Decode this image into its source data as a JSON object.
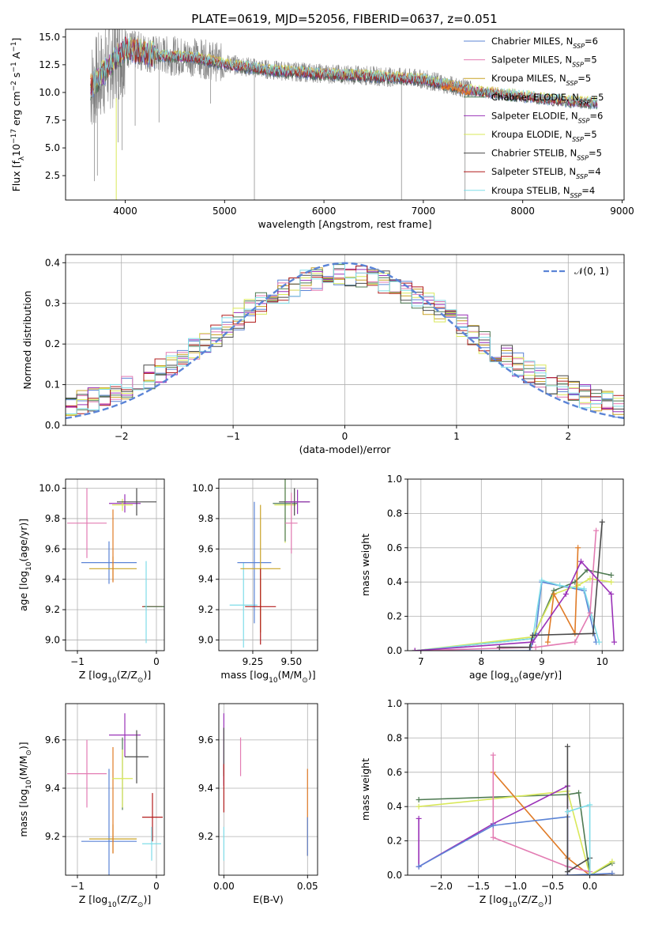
{
  "figure_title": "PLATE=0619, MJD=52056, FIBERID=0637, z=0.051",
  "colors": {
    "Chabrier MILES": "#5b84d6",
    "Salpeter MILES": "#e37cb3",
    "Kroupa MILES": "#c9a227",
    "Chabrier ELODIE": "#4e7a52",
    "Salpeter ELODIE": "#9a32b8",
    "Kroupa ELODIE": "#d9e85a",
    "Chabrier STELIB": "#4a4a4a",
    "Salpeter STELIB": "#b21c1c",
    "Kroupa STELIB": "#7fdde8",
    "data": "#808080",
    "highlight_orange": "#e07b27",
    "normal_curve": "#5b84d6"
  },
  "chart_data": [
    {
      "id": "spectrum",
      "type": "line",
      "xlabel": "wavelength [Angstrom, rest frame]",
      "ylabel_parts": [
        "Flux [f",
        "λ",
        "10",
        "−17",
        " erg cm",
        "−2",
        " s",
        "−1",
        " A",
        "−1",
        "]"
      ],
      "xlim": [
        3400,
        9020
      ],
      "ylim": [
        0.3,
        15.7
      ],
      "xticks": [
        4000,
        5000,
        6000,
        7000,
        8000,
        9000
      ],
      "yticks": [
        2.5,
        5.0,
        7.5,
        10.0,
        12.5,
        15.0
      ],
      "legend_position": "top-right",
      "legend": [
        {
          "name": "Chabrier MILES",
          "nssp": "6"
        },
        {
          "name": "Salpeter MILES",
          "nssp": "5"
        },
        {
          "name": "Kroupa MILES",
          "nssp": "5"
        },
        {
          "name": "Chabrier ELODIE",
          "nssp": "5"
        },
        {
          "name": "Salpeter ELODIE",
          "nssp": "6"
        },
        {
          "name": "Kroupa ELODIE",
          "nssp": "5"
        },
        {
          "name": "Chabrier STELIB",
          "nssp": "5"
        },
        {
          "name": "Salpeter STELIB",
          "nssp": "4"
        },
        {
          "name": "Kroupa STELIB",
          "nssp": "4"
        }
      ],
      "data_trend": [
        [
          3650,
          10.5
        ],
        [
          3800,
          12.0
        ],
        [
          4000,
          14.0
        ],
        [
          4300,
          13.4
        ],
        [
          4700,
          13.2
        ],
        [
          5000,
          12.6
        ],
        [
          5500,
          12.0
        ],
        [
          6000,
          11.7
        ],
        [
          6500,
          11.5
        ],
        [
          7000,
          11.2
        ],
        [
          7300,
          10.6
        ],
        [
          7500,
          10.2
        ],
        [
          8000,
          9.7
        ],
        [
          8500,
          9.2
        ],
        [
          8750,
          9.1
        ]
      ],
      "data_range": [
        3650,
        7480
      ],
      "model_range": [
        3650,
        8750
      ],
      "absorption_lines": [
        {
          "x": 3690,
          "y": 2.0
        },
        {
          "x": 3720,
          "y": 2.5
        },
        {
          "x": 3930,
          "y": 5.5
        },
        {
          "x": 3970,
          "y": 4.8
        },
        {
          "x": 4100,
          "y": 7.0
        },
        {
          "x": 4340,
          "y": 7.3
        },
        {
          "x": 4860,
          "y": 9.0
        },
        {
          "x": 5300,
          "y": 0.3
        },
        {
          "x": 6780,
          "y": 0.3
        },
        {
          "x": 7420,
          "y": 0.3
        }
      ],
      "model_drop": {
        "x": 3910,
        "y": 0.3
      }
    },
    {
      "id": "residual-histogram",
      "type": "histogram",
      "xlabel": "(data-model)/error",
      "ylabel": "Normed distribution",
      "xlim": [
        -2.5,
        2.5
      ],
      "ylim": [
        0,
        0.42
      ],
      "xticks": [
        -2,
        -1,
        0,
        1,
        2
      ],
      "yticks": [
        0.0,
        0.1,
        0.2,
        0.3,
        0.4
      ],
      "legend": [
        {
          "name": "𝒩(0, 1)",
          "style": "dashed"
        }
      ],
      "legend_position": "top-right",
      "bin_width": 0.1,
      "reference": "standard normal",
      "shape": {
        "center": 0.0,
        "peak": 0.37,
        "width": 1.1,
        "floor": 0.02
      }
    },
    {
      "id": "age-vs-Z",
      "type": "scatter-errorbar",
      "xlabel_parts": [
        "Z [log",
        "10",
        "(Z/Z",
        "⊙",
        ")]"
      ],
      "ylabel_parts": [
        "age  [log",
        "10",
        "(age/yr)]"
      ],
      "xlim": [
        -1.15,
        0.1
      ],
      "ylim": [
        8.93,
        10.06
      ],
      "xticks": [
        -1,
        0
      ],
      "yticks": [
        9.0,
        9.2,
        9.4,
        9.6,
        9.8,
        10.0
      ],
      "points": [
        {
          "s": "Salpeter MILES",
          "x": -0.88,
          "y": 9.77,
          "xe": 0.25,
          "ye": 0.23
        },
        {
          "s": "Chabrier MILES",
          "x": -0.6,
          "y": 9.51,
          "xe": 0.35,
          "ye": 0.14
        },
        {
          "s": "Kroupa MILES",
          "x": -0.55,
          "y": 9.47,
          "xe": 0.3,
          "ye": 0.08
        },
        {
          "s": "Highlight",
          "x": -0.55,
          "y": 9.62,
          "xe": 0.0,
          "ye": 0.24
        },
        {
          "s": "Salpeter ELODIE",
          "x": -0.4,
          "y": 9.9,
          "xe": 0.2,
          "ye": 0.06
        },
        {
          "s": "Kroupa ELODIE",
          "x": -0.43,
          "y": 9.89,
          "xe": 0.13,
          "ye": 0.04
        },
        {
          "s": "Chabrier STELIB",
          "x": -0.25,
          "y": 9.91,
          "xe": 0.25,
          "ye": 0.09
        },
        {
          "s": "Salpeter STELIB",
          "x": -0.05,
          "y": 9.22,
          "xe": 0.13,
          "ye": 0.0
        },
        {
          "s": "Chabrier ELODIE",
          "x": -0.03,
          "y": 9.22,
          "xe": 0.13,
          "ye": 0.0
        },
        {
          "s": "Kroupa STELIB",
          "x": -0.13,
          "y": 9.25,
          "xe": 0.0,
          "ye": 0.27
        }
      ]
    },
    {
      "id": "age-vs-mass",
      "type": "scatter-errorbar",
      "xlabel_parts": [
        "mass [log",
        "10",
        "(M/M",
        "⊙",
        ")]"
      ],
      "ylabel_parts": [],
      "xlim": [
        9.03,
        9.67
      ],
      "ylim": [
        8.93,
        10.06
      ],
      "xticks": [
        9.25,
        9.5
      ],
      "xticklabels": [
        "9.25",
        "9.50"
      ],
      "yticks": [
        9.0,
        9.2,
        9.4,
        9.6,
        9.8,
        10.0
      ],
      "points": [
        {
          "s": "Kroupa STELIB",
          "x": 9.19,
          "y": 9.23,
          "xe": 0.09,
          "ye": 0.28
        },
        {
          "s": "Chabrier MILES",
          "x": 9.26,
          "y": 9.51,
          "xe": 0.11,
          "ye": 0.4
        },
        {
          "s": "Kroupa MILES",
          "x": 9.3,
          "y": 9.47,
          "xe": 0.13,
          "ye": 0.42
        },
        {
          "s": "Salpeter STELIB",
          "x": 9.3,
          "y": 9.22,
          "xe": 0.1,
          "ye": 0.25
        },
        {
          "s": "Kroupa ELODIE",
          "x": 9.46,
          "y": 9.89,
          "xe": 0.07,
          "ye": 0.25
        },
        {
          "s": "Chabrier ELODIE",
          "x": 9.46,
          "y": 9.9,
          "xe": 0.08,
          "ye": 0.25
        },
        {
          "s": "Salpeter MILES",
          "x": 9.5,
          "y": 9.77,
          "xe": 0.04,
          "ye": 0.2
        },
        {
          "s": "Chabrier STELIB",
          "x": 9.52,
          "y": 9.91,
          "xe": 0.1,
          "ye": 0.09
        },
        {
          "s": "Salpeter ELODIE",
          "x": 9.54,
          "y": 9.91,
          "xe": 0.08,
          "ye": 0.08
        }
      ]
    },
    {
      "id": "massweight-vs-age",
      "type": "line",
      "xlabel_parts": [
        "age  [log",
        "10",
        "(age/yr)]"
      ],
      "ylabel": "mass weight",
      "xlim": [
        6.78,
        10.35
      ],
      "ylim": [
        0,
        1.0
      ],
      "xticks": [
        7,
        8,
        9,
        10
      ],
      "yticks": [
        0.0,
        0.2,
        0.4,
        0.6,
        0.8,
        1.0
      ],
      "series": [
        {
          "name": "Chabrier MILES",
          "pts": [
            [
              6.9,
              0.0
            ],
            [
              8.8,
              0.0
            ],
            [
              8.9,
              0.1
            ],
            [
              9.0,
              0.4
            ],
            [
              9.7,
              0.35
            ],
            [
              9.9,
              0.05
            ]
          ]
        },
        {
          "name": "Chabrier ELODIE",
          "pts": [
            [
              6.9,
              0.0
            ],
            [
              8.85,
              0.07
            ],
            [
              9.2,
              0.35
            ],
            [
              9.55,
              0.4
            ],
            [
              9.75,
              0.47
            ],
            [
              10.15,
              0.44
            ]
          ]
        },
        {
          "name": "Kroupa ELODIE",
          "pts": [
            [
              6.9,
              0.0
            ],
            [
              8.85,
              0.08
            ],
            [
              9.2,
              0.33
            ],
            [
              9.6,
              0.38
            ],
            [
              9.8,
              0.42
            ],
            [
              10.15,
              0.4
            ]
          ]
        },
        {
          "name": "Kroupa STELIB",
          "pts": [
            [
              6.9,
              0.0
            ],
            [
              8.85,
              0.07
            ],
            [
              9.0,
              0.41
            ],
            [
              9.3,
              0.38
            ],
            [
              9.7,
              0.36
            ],
            [
              9.95,
              0.05
            ]
          ]
        },
        {
          "name": "Salpeter MILES",
          "pts": [
            [
              6.9,
              0.0
            ],
            [
              8.9,
              0.02
            ],
            [
              9.55,
              0.05
            ],
            [
              9.8,
              0.22
            ],
            [
              9.9,
              0.7
            ]
          ]
        },
        {
          "name": "Highlight",
          "pts": [
            [
              9.1,
              0.05
            ],
            [
              9.2,
              0.33
            ],
            [
              9.55,
              0.1
            ],
            [
              9.6,
              0.6
            ]
          ]
        },
        {
          "name": "Chabrier STELIB",
          "pts": [
            [
              8.3,
              0.02
            ],
            [
              8.8,
              0.02
            ],
            [
              8.85,
              0.09
            ],
            [
              9.85,
              0.1
            ],
            [
              10.0,
              0.75
            ]
          ]
        },
        {
          "name": "Salpeter ELODIE",
          "pts": [
            [
              6.9,
              0.0
            ],
            [
              8.85,
              0.05
            ],
            [
              9.4,
              0.33
            ],
            [
              9.65,
              0.52
            ],
            [
              10.15,
              0.33
            ],
            [
              10.2,
              0.05
            ]
          ]
        }
      ]
    },
    {
      "id": "mass-vs-Z",
      "type": "scatter-errorbar",
      "xlabel_parts": [
        "Z [log",
        "10",
        "(Z/Z",
        "⊙",
        ")]"
      ],
      "ylabel_parts": [
        "mass [log",
        "10",
        "(M/M",
        "⊙",
        ")]"
      ],
      "xlim": [
        -1.15,
        0.1
      ],
      "ylim": [
        9.04,
        9.75
      ],
      "xticks": [
        -1,
        0
      ],
      "yticks": [
        9.2,
        9.4,
        9.6
      ],
      "points": [
        {
          "s": "Salpeter MILES",
          "x": -0.88,
          "y": 9.46,
          "xe": 0.25,
          "ye": 0.14
        },
        {
          "s": "Chabrier MILES",
          "x": -0.6,
          "y": 9.18,
          "xe": 0.35,
          "ye": 0.3
        },
        {
          "s": "Kroupa MILES",
          "x": -0.55,
          "y": 9.19,
          "xe": 0.3,
          "ye": 0.06
        },
        {
          "s": "Highlight",
          "x": -0.55,
          "y": 9.35,
          "xe": 0.0,
          "ye": 0.22
        },
        {
          "s": "Chabrier ELODIE",
          "x": -0.43,
          "y": 9.46,
          "xe": 0.0,
          "ye": 0.15
        },
        {
          "s": "Kroupa ELODIE",
          "x": -0.43,
          "y": 9.44,
          "xe": 0.13,
          "ye": 0.12
        },
        {
          "s": "Salpeter ELODIE",
          "x": -0.4,
          "y": 9.62,
          "xe": 0.2,
          "ye": 0.09
        },
        {
          "s": "Chabrier STELIB",
          "x": -0.25,
          "y": 9.53,
          "xe": 0.15,
          "ye": 0.11
        },
        {
          "s": "Salpeter STELIB",
          "x": -0.05,
          "y": 9.28,
          "xe": 0.13,
          "ye": 0.1
        },
        {
          "s": "Kroupa STELIB",
          "x": -0.06,
          "y": 9.17,
          "xe": 0.12,
          "ye": 0.07
        }
      ]
    },
    {
      "id": "mass-vs-EBV",
      "type": "scatter-errorbar",
      "xlabel": "E(B-V)",
      "ylabel_parts": [],
      "xlim": [
        -0.003,
        0.056
      ],
      "ylim": [
        9.04,
        9.75
      ],
      "xticks": [
        0.0,
        0.05
      ],
      "xticklabels": [
        "0.00",
        "0.05"
      ],
      "yticks": [
        9.2,
        9.4,
        9.6
      ],
      "points": [
        {
          "s": "Salpeter ELODIE",
          "x": 0.0,
          "y": 9.56,
          "xe": 0.0,
          "ye": 0.15
        },
        {
          "s": "Chabrier STELIB",
          "x": 0.0,
          "y": 9.55,
          "xe": 0.0,
          "ye": 0.1
        },
        {
          "s": "Salpeter STELIB",
          "x": 0.0,
          "y": 9.4,
          "xe": 0.0,
          "ye": 0.1
        },
        {
          "s": "Kroupa STELIB",
          "x": 0.0,
          "y": 9.17,
          "xe": 0.0,
          "ye": 0.07
        },
        {
          "s": "Salpeter MILES",
          "x": 0.01,
          "y": 9.53,
          "xe": 0.0,
          "ye": 0.08
        },
        {
          "s": "Highlight",
          "x": 0.05,
          "y": 9.3,
          "xe": 0.0,
          "ye": 0.18
        },
        {
          "s": "Chabrier MILES",
          "x": 0.05,
          "y": 9.2,
          "xe": 0.0,
          "ye": 0.08
        }
      ]
    },
    {
      "id": "massweight-vs-Z",
      "type": "line",
      "xlabel_parts": [
        "Z [log",
        "10",
        "(Z/Z",
        "⊙",
        ")]"
      ],
      "ylabel": "mass weight",
      "xlim": [
        -2.45,
        0.45
      ],
      "ylim": [
        0,
        1.0
      ],
      "xticks": [
        -2.0,
        -1.5,
        -1.0,
        -0.5,
        0.0
      ],
      "xticklabels": [
        "−2.0",
        "−1.5",
        "−1.0",
        "−0.5",
        "0.0"
      ],
      "yticks": [
        0.0,
        0.2,
        0.4,
        0.6,
        0.8,
        1.0
      ],
      "series": [
        {
          "name": "Chabrier ELODIE",
          "pts": [
            [
              -2.3,
              0.44
            ],
            [
              -0.3,
              0.47
            ],
            [
              -0.15,
              0.48
            ],
            [
              0.0,
              0.0
            ],
            [
              0.3,
              0.07
            ]
          ]
        },
        {
          "name": "Kroupa ELODIE",
          "pts": [
            [
              -2.3,
              0.4
            ],
            [
              -0.3,
              0.49
            ],
            [
              0.0,
              0.0
            ],
            [
              0.3,
              0.08
            ]
          ]
        },
        {
          "name": "Salpeter ELODIE",
          "pts": [
            [
              -2.3,
              0.33
            ],
            [
              -2.3,
              0.05
            ],
            [
              -1.3,
              0.3
            ],
            [
              -0.3,
              0.52
            ],
            [
              -0.3,
              0.0
            ]
          ]
        },
        {
          "name": "Highlight",
          "pts": [
            [
              -1.3,
              0.6
            ],
            [
              -0.3,
              0.1
            ],
            [
              0.0,
              0.0
            ],
            [
              0.3,
              0.01
            ]
          ]
        },
        {
          "name": "Salpeter MILES",
          "pts": [
            [
              -1.3,
              0.7
            ],
            [
              -1.3,
              0.22
            ],
            [
              -0.3,
              0.05
            ],
            [
              0.0,
              0.02
            ]
          ]
        },
        {
          "name": "Chabrier MILES",
          "pts": [
            [
              -2.3,
              0.05
            ],
            [
              -1.3,
              0.29
            ],
            [
              -0.3,
              0.34
            ],
            [
              -0.3,
              0.0
            ],
            [
              0.3,
              0.01
            ]
          ]
        },
        {
          "name": "Chabrier STELIB",
          "pts": [
            [
              -0.3,
              0.75
            ],
            [
              -0.3,
              0.02
            ],
            [
              0.0,
              0.1
            ],
            [
              0.0,
              0.0
            ]
          ]
        },
        {
          "name": "Kroupa STELIB",
          "pts": [
            [
              -0.3,
              0.37
            ],
            [
              0.0,
              0.41
            ],
            [
              0.0,
              0.0
            ]
          ]
        }
      ]
    }
  ]
}
